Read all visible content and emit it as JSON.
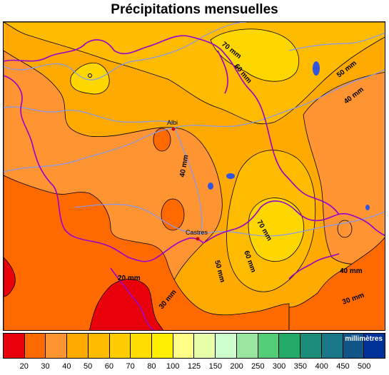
{
  "title": "Précipitations mensuelles",
  "legend": {
    "unit": "millimètres",
    "ticks": [
      "20",
      "30",
      "40",
      "50",
      "60",
      "70",
      "80",
      "100",
      "125",
      "150",
      "200",
      "250",
      "300",
      "350",
      "400",
      "450",
      "500"
    ],
    "colors": [
      "#e8000b",
      "#ff6a00",
      "#ff9433",
      "#ffaa00",
      "#ffbb00",
      "#ffcc00",
      "#ffdd00",
      "#ffee00",
      "#ffff88",
      "#e8ffaa",
      "#ccffcc",
      "#99e6a0",
      "#55cc77",
      "#22aa66",
      "#1a8c77",
      "#1a7788",
      "#115588",
      "#003399"
    ]
  },
  "map": {
    "contour_labels": [
      "70 mm",
      "60 mm",
      "50 mm",
      "40 mm",
      "40 mm",
      "70 mm",
      "60 mm",
      "50 mm",
      "40 mm",
      "30 mm",
      "30 mm",
      "20 mm"
    ],
    "cities": [
      "Albi",
      "Castres"
    ],
    "colors": {
      "band_20": "#e8000b",
      "band_30": "#ff6a00",
      "band_40": "#ff9433",
      "band_50": "#ffaa00",
      "band_60": "#ffbb00",
      "band_70": "#ffd700",
      "river": "#8899ee",
      "border": "#9900cc",
      "lake": "#3355dd",
      "city": "#cc0000"
    }
  }
}
